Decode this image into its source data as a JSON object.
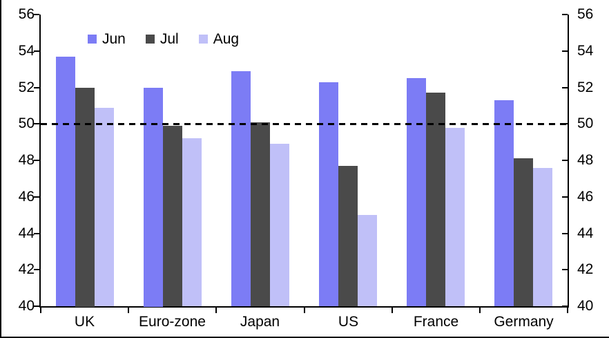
{
  "chart_data": {
    "type": "bar",
    "title": "",
    "categories": [
      "UK",
      "Euro-zone",
      "Japan",
      "US",
      "France",
      "Germany"
    ],
    "series": [
      {
        "name": "Jun",
        "color": "#7C7CF5",
        "values": [
          53.7,
          52.0,
          52.9,
          52.3,
          52.5,
          51.3
        ]
      },
      {
        "name": "Jul",
        "color": "#4A4A4A",
        "values": [
          52.0,
          49.9,
          50.1,
          47.7,
          51.7,
          48.1
        ]
      },
      {
        "name": "Aug",
        "color": "#C0C0F8",
        "values": [
          50.9,
          49.2,
          48.9,
          45.0,
          49.8,
          47.6
        ]
      }
    ],
    "ylim": [
      40,
      56
    ],
    "ytick_step": 2,
    "yticks": [
      40,
      42,
      44,
      46,
      48,
      50,
      52,
      54,
      56
    ],
    "y_axis": "dual (same scale left and right)",
    "xlabel": "",
    "ylabel": "",
    "grid": false,
    "legend_position": "top-center",
    "reference_line": {
      "value": 50,
      "style": "dashed",
      "color": "#000000"
    },
    "axis_color": "#000000",
    "background_color": "#FFFFFF"
  }
}
